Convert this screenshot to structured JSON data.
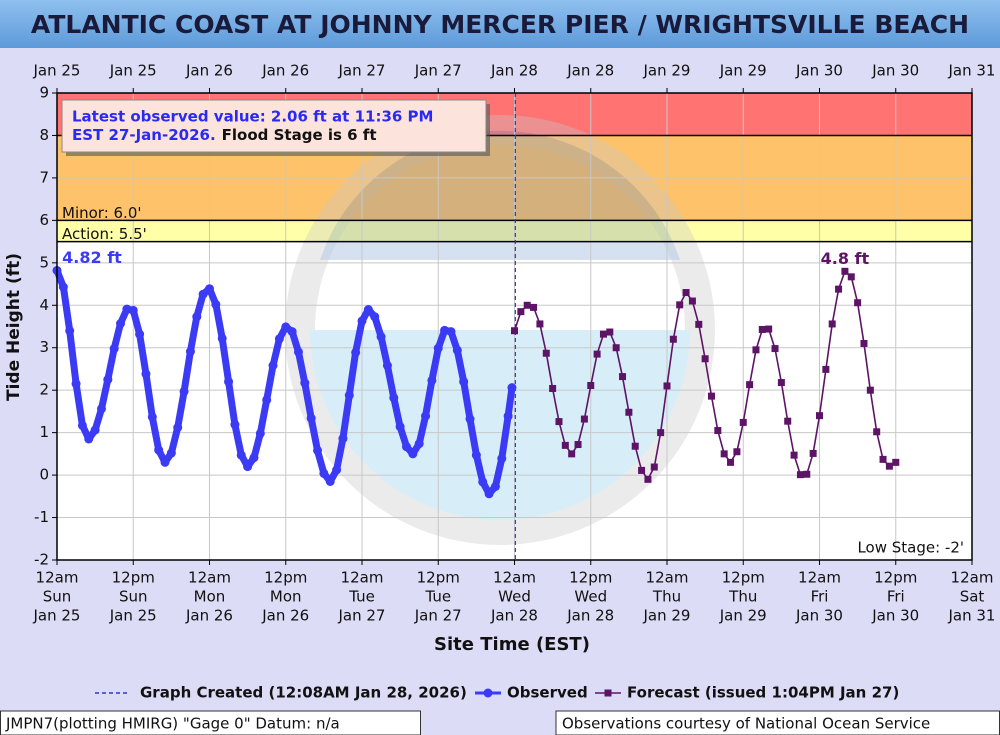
{
  "chart_data": {
    "type": "line",
    "title": "ATLANTIC COAST AT JOHNNY MERCER PIER / WRIGHTSVILLE BEACH",
    "x_label": "Site Time (EST)",
    "y_label": "Tide Height (ft)",
    "xlim": [
      "2026-01-25T00:00",
      "2026-01-31T00:00"
    ],
    "xticks": [
      {
        "value": "2026-01-25T00:00",
        "label": [
          "12am",
          "Sun",
          "Jan 25"
        ],
        "top_label": "Jan 25"
      },
      {
        "value": "2026-01-25T12:00",
        "label": [
          "12pm",
          "Sun",
          "Jan 25"
        ],
        "top_label": "Jan 25"
      },
      {
        "value": "2026-01-26T00:00",
        "label": [
          "12am",
          "Mon",
          "Jan 26"
        ],
        "top_label": "Jan 26"
      },
      {
        "value": "2026-01-26T12:00",
        "label": [
          "12pm",
          "Mon",
          "Jan 26"
        ],
        "top_label": "Jan 26"
      },
      {
        "value": "2026-01-27T00:00",
        "label": [
          "12am",
          "Tue",
          "Jan 27"
        ],
        "top_label": "Jan 27"
      },
      {
        "value": "2026-01-27T12:00",
        "label": [
          "12pm",
          "Tue",
          "Jan 27"
        ],
        "top_label": "Jan 27"
      },
      {
        "value": "2026-01-28T00:00",
        "label": [
          "12am",
          "Wed",
          "Jan 28"
        ],
        "top_label": "Jan 28"
      },
      {
        "value": "2026-01-28T12:00",
        "label": [
          "12pm",
          "Wed",
          "Jan 28"
        ],
        "top_label": "Jan 28"
      },
      {
        "value": "2026-01-29T00:00",
        "label": [
          "12am",
          "Thu",
          "Jan 29"
        ],
        "top_label": "Jan 29"
      },
      {
        "value": "2026-01-29T12:00",
        "label": [
          "12pm",
          "Thu",
          "Jan 29"
        ],
        "top_label": "Jan 29"
      },
      {
        "value": "2026-01-30T00:00",
        "label": [
          "12am",
          "Fri",
          "Jan 30"
        ],
        "top_label": "Jan 30"
      },
      {
        "value": "2026-01-30T12:00",
        "label": [
          "12pm",
          "Fri",
          "Jan 30"
        ],
        "top_label": "Jan 30"
      },
      {
        "value": "2026-01-31T00:00",
        "label": [
          "12am",
          "Sat",
          "Jan 31"
        ],
        "top_label": "Jan 31"
      }
    ],
    "ylim": [
      -2,
      9
    ],
    "yticks": [
      -2,
      -1,
      0,
      1,
      2,
      3,
      4,
      5,
      6,
      7,
      8,
      9
    ],
    "grid": true,
    "bands": [
      {
        "from": 5.5,
        "to": 6,
        "color": "#ffffa8"
      },
      {
        "from": 6,
        "to": 8,
        "color": "#fdc26a"
      },
      {
        "from": 8,
        "to": 9,
        "color": "#ff7373"
      }
    ],
    "stages": [
      {
        "label": "Minor: 6.0'",
        "value": 6
      },
      {
        "label": "Action: 5.5'",
        "value": 5.5
      },
      {
        "label": "Low Stage: -2'",
        "value": -2
      }
    ],
    "created": {
      "label": "Graph Created (12:08AM Jan 28, 2026)",
      "x": "2026-01-28T00:08"
    },
    "latest_observed": {
      "lines": [
        "Latest observed value: 2.06 ft at 11:36 PM",
        "EST 27-Jan-2026."
      ],
      "flood_stage": "Flood Stage is 6 ft"
    },
    "annotations": [
      {
        "text": "4.82 ft",
        "x": "2026-01-25T00:00",
        "y": 4.82,
        "color": "#3b3bf5"
      },
      {
        "text": "4.8 ft",
        "x": "2026-01-30T04:00",
        "y": 4.8,
        "color": "#5e1466"
      }
    ],
    "series": [
      {
        "name": "Observed",
        "color": "#3b3bf5",
        "marker": "circle",
        "x": [
          "2026-01-25T00:00",
          "2026-01-25T01:00",
          "2026-01-25T02:00",
          "2026-01-25T03:00",
          "2026-01-25T04:00",
          "2026-01-25T05:00",
          "2026-01-25T06:00",
          "2026-01-25T07:00",
          "2026-01-25T08:00",
          "2026-01-25T09:00",
          "2026-01-25T10:00",
          "2026-01-25T11:00",
          "2026-01-25T12:00",
          "2026-01-25T13:00",
          "2026-01-25T14:00",
          "2026-01-25T15:00",
          "2026-01-25T16:00",
          "2026-01-25T17:00",
          "2026-01-25T18:00",
          "2026-01-25T19:00",
          "2026-01-25T20:00",
          "2026-01-25T21:00",
          "2026-01-25T22:00",
          "2026-01-25T23:00",
          "2026-01-26T00:00",
          "2026-01-26T01:00",
          "2026-01-26T02:00",
          "2026-01-26T03:00",
          "2026-01-26T04:00",
          "2026-01-26T05:00",
          "2026-01-26T06:00",
          "2026-01-26T07:00",
          "2026-01-26T08:00",
          "2026-01-26T09:00",
          "2026-01-26T10:00",
          "2026-01-26T11:00",
          "2026-01-26T12:00",
          "2026-01-26T13:00",
          "2026-01-26T14:00",
          "2026-01-26T15:00",
          "2026-01-26T16:00",
          "2026-01-26T17:00",
          "2026-01-26T18:00",
          "2026-01-26T19:00",
          "2026-01-26T20:00",
          "2026-01-26T21:00",
          "2026-01-26T22:00",
          "2026-01-26T23:00",
          "2026-01-27T00:00",
          "2026-01-27T01:00",
          "2026-01-27T02:00",
          "2026-01-27T03:00",
          "2026-01-27T04:00",
          "2026-01-27T05:00",
          "2026-01-27T06:00",
          "2026-01-27T07:00",
          "2026-01-27T08:00",
          "2026-01-27T09:00",
          "2026-01-27T10:00",
          "2026-01-27T11:00",
          "2026-01-27T12:00",
          "2026-01-27T13:00",
          "2026-01-27T14:00",
          "2026-01-27T15:00",
          "2026-01-27T16:00",
          "2026-01-27T17:00",
          "2026-01-27T18:00",
          "2026-01-27T19:00",
          "2026-01-27T20:00",
          "2026-01-27T21:00",
          "2026-01-27T22:00",
          "2026-01-27T23:00",
          "2026-01-27T23:36"
        ],
        "values": [
          4.82,
          4.43,
          3.4,
          2.15,
          1.17,
          0.85,
          1.06,
          1.56,
          2.25,
          2.98,
          3.57,
          3.91,
          3.88,
          3.32,
          2.38,
          1.37,
          0.59,
          0.3,
          0.52,
          1.12,
          1.97,
          2.91,
          3.73,
          4.26,
          4.39,
          4.02,
          3.22,
          2.2,
          1.19,
          0.47,
          0.2,
          0.41,
          0.98,
          1.77,
          2.58,
          3.21,
          3.49,
          3.38,
          2.9,
          2.17,
          1.34,
          0.58,
          0.04,
          -0.15,
          0.12,
          0.86,
          1.88,
          2.89,
          3.63,
          3.9,
          3.73,
          3.26,
          2.58,
          1.82,
          1.14,
          0.67,
          0.5,
          0.74,
          1.39,
          2.23,
          2.99,
          3.41,
          3.38,
          2.94,
          2.2,
          1.32,
          0.47,
          -0.16,
          -0.44,
          -0.27,
          0.39,
          1.39,
          2.06
        ]
      },
      {
        "name": "Forecast (issued 1:04PM Jan 27)",
        "color": "#5e1466",
        "marker": "square",
        "x": [
          "2026-01-28T00:00",
          "2026-01-28T01:00",
          "2026-01-28T02:00",
          "2026-01-28T03:00",
          "2026-01-28T04:00",
          "2026-01-28T05:00",
          "2026-01-28T06:00",
          "2026-01-28T07:00",
          "2026-01-28T08:00",
          "2026-01-28T09:00",
          "2026-01-28T10:00",
          "2026-01-28T11:00",
          "2026-01-28T12:00",
          "2026-01-28T13:00",
          "2026-01-28T14:00",
          "2026-01-28T15:00",
          "2026-01-28T16:00",
          "2026-01-28T17:00",
          "2026-01-28T18:00",
          "2026-01-28T19:00",
          "2026-01-28T20:00",
          "2026-01-28T21:00",
          "2026-01-28T22:00",
          "2026-01-28T23:00",
          "2026-01-29T00:00",
          "2026-01-29T01:00",
          "2026-01-29T02:00",
          "2026-01-29T03:00",
          "2026-01-29T04:00",
          "2026-01-29T05:00",
          "2026-01-29T06:00",
          "2026-01-29T07:00",
          "2026-01-29T08:00",
          "2026-01-29T09:00",
          "2026-01-29T10:00",
          "2026-01-29T11:00",
          "2026-01-29T12:00",
          "2026-01-29T13:00",
          "2026-01-29T14:00",
          "2026-01-29T15:00",
          "2026-01-29T16:00",
          "2026-01-29T17:00",
          "2026-01-29T18:00",
          "2026-01-29T19:00",
          "2026-01-29T20:00",
          "2026-01-29T21:00",
          "2026-01-29T22:00",
          "2026-01-29T23:00",
          "2026-01-30T00:00",
          "2026-01-30T01:00",
          "2026-01-30T02:00",
          "2026-01-30T03:00",
          "2026-01-30T04:00",
          "2026-01-30T05:00",
          "2026-01-30T06:00",
          "2026-01-30T07:00",
          "2026-01-30T08:00",
          "2026-01-30T09:00",
          "2026-01-30T10:00",
          "2026-01-30T11:00",
          "2026-01-30T12:00"
        ],
        "values": [
          3.4,
          3.85,
          4.0,
          3.95,
          3.56,
          2.87,
          2.04,
          1.26,
          0.7,
          0.5,
          0.72,
          1.32,
          2.11,
          2.85,
          3.32,
          3.37,
          3.0,
          2.32,
          1.48,
          0.68,
          0.11,
          -0.1,
          0.19,
          1.0,
          2.1,
          3.2,
          4.01,
          4.3,
          4.1,
          3.55,
          2.74,
          1.86,
          1.05,
          0.5,
          0.3,
          0.55,
          1.24,
          2.13,
          2.95,
          3.43,
          3.44,
          2.98,
          2.18,
          1.27,
          0.47,
          0.01,
          0.02,
          0.51,
          1.4,
          2.49,
          3.56,
          4.38,
          4.8,
          4.67,
          4.06,
          3.1,
          2.0,
          1.02,
          0.37,
          0.21,
          0.3
        ]
      }
    ],
    "footer_left": "JMPN7(plotting HMIRG) \"Gage 0\" Datum: n/a",
    "footer_right": "Observations courtesy of National Ocean Service"
  }
}
